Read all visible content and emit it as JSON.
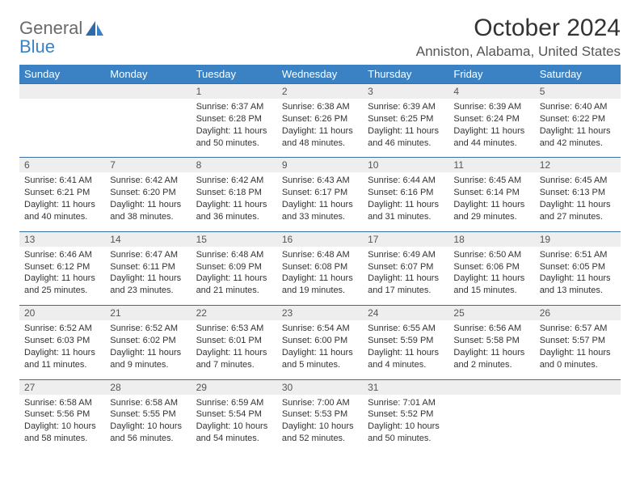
{
  "brand": {
    "general": "General",
    "blue": "Blue",
    "accent_color": "#3b82c4",
    "gray_color": "#6a6a6a"
  },
  "title": "October 2024",
  "location": "Anniston, Alabama, United States",
  "day_headers": [
    "Sunday",
    "Monday",
    "Tuesday",
    "Wednesday",
    "Thursday",
    "Friday",
    "Saturday"
  ],
  "colors": {
    "header_bg": "#3b82c4",
    "header_text": "#ffffff",
    "daynum_bg": "#eeeeee",
    "daynum_text": "#555555",
    "row_divider": "#3b6ea0",
    "text": "#333333",
    "page_bg": "#ffffff"
  },
  "typography": {
    "title_fontsize": 30,
    "location_fontsize": 17,
    "header_fontsize": 13,
    "daynum_fontsize": 12,
    "cell_fontsize": 11
  },
  "weeks": [
    {
      "nums": [
        "",
        "",
        "1",
        "2",
        "3",
        "4",
        "5"
      ],
      "cells": [
        [],
        [],
        [
          "Sunrise: 6:37 AM",
          "Sunset: 6:28 PM",
          "Daylight: 11 hours",
          "and 50 minutes."
        ],
        [
          "Sunrise: 6:38 AM",
          "Sunset: 6:26 PM",
          "Daylight: 11 hours",
          "and 48 minutes."
        ],
        [
          "Sunrise: 6:39 AM",
          "Sunset: 6:25 PM",
          "Daylight: 11 hours",
          "and 46 minutes."
        ],
        [
          "Sunrise: 6:39 AM",
          "Sunset: 6:24 PM",
          "Daylight: 11 hours",
          "and 44 minutes."
        ],
        [
          "Sunrise: 6:40 AM",
          "Sunset: 6:22 PM",
          "Daylight: 11 hours",
          "and 42 minutes."
        ]
      ]
    },
    {
      "nums": [
        "6",
        "7",
        "8",
        "9",
        "10",
        "11",
        "12"
      ],
      "cells": [
        [
          "Sunrise: 6:41 AM",
          "Sunset: 6:21 PM",
          "Daylight: 11 hours",
          "and 40 minutes."
        ],
        [
          "Sunrise: 6:42 AM",
          "Sunset: 6:20 PM",
          "Daylight: 11 hours",
          "and 38 minutes."
        ],
        [
          "Sunrise: 6:42 AM",
          "Sunset: 6:18 PM",
          "Daylight: 11 hours",
          "and 36 minutes."
        ],
        [
          "Sunrise: 6:43 AM",
          "Sunset: 6:17 PM",
          "Daylight: 11 hours",
          "and 33 minutes."
        ],
        [
          "Sunrise: 6:44 AM",
          "Sunset: 6:16 PM",
          "Daylight: 11 hours",
          "and 31 minutes."
        ],
        [
          "Sunrise: 6:45 AM",
          "Sunset: 6:14 PM",
          "Daylight: 11 hours",
          "and 29 minutes."
        ],
        [
          "Sunrise: 6:45 AM",
          "Sunset: 6:13 PM",
          "Daylight: 11 hours",
          "and 27 minutes."
        ]
      ]
    },
    {
      "nums": [
        "13",
        "14",
        "15",
        "16",
        "17",
        "18",
        "19"
      ],
      "cells": [
        [
          "Sunrise: 6:46 AM",
          "Sunset: 6:12 PM",
          "Daylight: 11 hours",
          "and 25 minutes."
        ],
        [
          "Sunrise: 6:47 AM",
          "Sunset: 6:11 PM",
          "Daylight: 11 hours",
          "and 23 minutes."
        ],
        [
          "Sunrise: 6:48 AM",
          "Sunset: 6:09 PM",
          "Daylight: 11 hours",
          "and 21 minutes."
        ],
        [
          "Sunrise: 6:48 AM",
          "Sunset: 6:08 PM",
          "Daylight: 11 hours",
          "and 19 minutes."
        ],
        [
          "Sunrise: 6:49 AM",
          "Sunset: 6:07 PM",
          "Daylight: 11 hours",
          "and 17 minutes."
        ],
        [
          "Sunrise: 6:50 AM",
          "Sunset: 6:06 PM",
          "Daylight: 11 hours",
          "and 15 minutes."
        ],
        [
          "Sunrise: 6:51 AM",
          "Sunset: 6:05 PM",
          "Daylight: 11 hours",
          "and 13 minutes."
        ]
      ]
    },
    {
      "nums": [
        "20",
        "21",
        "22",
        "23",
        "24",
        "25",
        "26"
      ],
      "cells": [
        [
          "Sunrise: 6:52 AM",
          "Sunset: 6:03 PM",
          "Daylight: 11 hours",
          "and 11 minutes."
        ],
        [
          "Sunrise: 6:52 AM",
          "Sunset: 6:02 PM",
          "Daylight: 11 hours",
          "and 9 minutes."
        ],
        [
          "Sunrise: 6:53 AM",
          "Sunset: 6:01 PM",
          "Daylight: 11 hours",
          "and 7 minutes."
        ],
        [
          "Sunrise: 6:54 AM",
          "Sunset: 6:00 PM",
          "Daylight: 11 hours",
          "and 5 minutes."
        ],
        [
          "Sunrise: 6:55 AM",
          "Sunset: 5:59 PM",
          "Daylight: 11 hours",
          "and 4 minutes."
        ],
        [
          "Sunrise: 6:56 AM",
          "Sunset: 5:58 PM",
          "Daylight: 11 hours",
          "and 2 minutes."
        ],
        [
          "Sunrise: 6:57 AM",
          "Sunset: 5:57 PM",
          "Daylight: 11 hours",
          "and 0 minutes."
        ]
      ]
    },
    {
      "nums": [
        "27",
        "28",
        "29",
        "30",
        "31",
        "",
        ""
      ],
      "cells": [
        [
          "Sunrise: 6:58 AM",
          "Sunset: 5:56 PM",
          "Daylight: 10 hours",
          "and 58 minutes."
        ],
        [
          "Sunrise: 6:58 AM",
          "Sunset: 5:55 PM",
          "Daylight: 10 hours",
          "and 56 minutes."
        ],
        [
          "Sunrise: 6:59 AM",
          "Sunset: 5:54 PM",
          "Daylight: 10 hours",
          "and 54 minutes."
        ],
        [
          "Sunrise: 7:00 AM",
          "Sunset: 5:53 PM",
          "Daylight: 10 hours",
          "and 52 minutes."
        ],
        [
          "Sunrise: 7:01 AM",
          "Sunset: 5:52 PM",
          "Daylight: 10 hours",
          "and 50 minutes."
        ],
        [],
        []
      ]
    }
  ]
}
